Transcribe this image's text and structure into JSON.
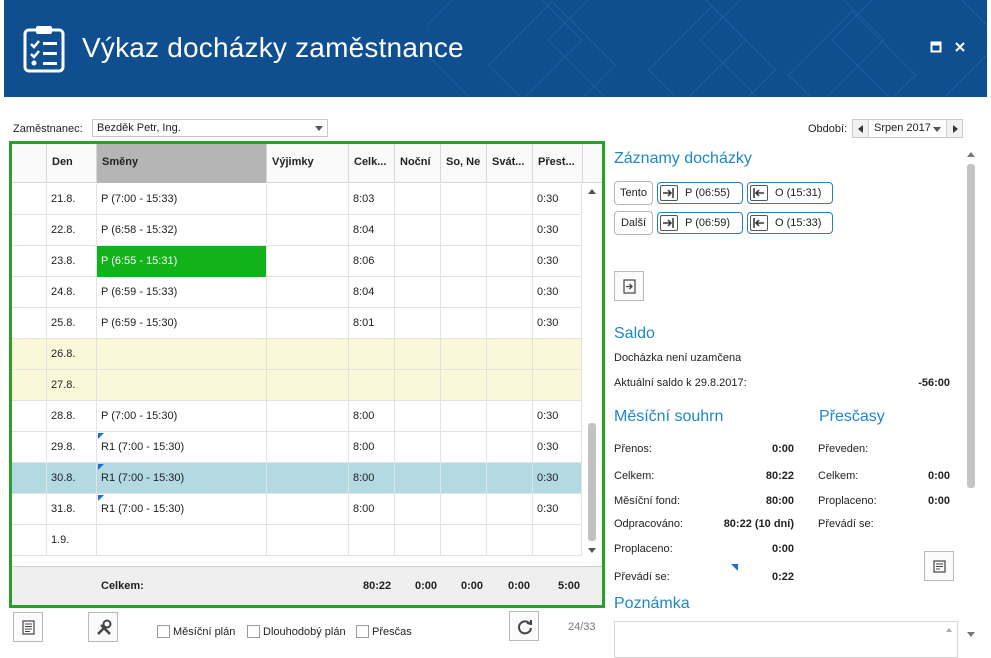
{
  "header": {
    "title": "Výkaz docházky zaměstnance",
    "maximize_icon": "maximize-icon",
    "close_icon": "close-icon"
  },
  "filters": {
    "employee_label": "Zaměstnanec:",
    "employee_value": "Bezděk Petr, Ing.",
    "period_label": "Období:",
    "period_value": "Srpen 2017"
  },
  "grid": {
    "columns": [
      "Den",
      "Směny",
      "Výjimky",
      "Celk...",
      "Noční",
      "So, Ne",
      "Svát...",
      "Přest..."
    ],
    "rows": [
      {
        "day": "21.8.",
        "shift": "P (7:00 - 15:33)",
        "exc": "",
        "total": "8:03",
        "night": "",
        "weekend": "",
        "holiday": "",
        "break": "0:30",
        "type": "normal",
        "flag": false
      },
      {
        "day": "22.8.",
        "shift": "P (6:58 - 15:32)",
        "exc": "",
        "total": "8:04",
        "night": "",
        "weekend": "",
        "holiday": "",
        "break": "0:30",
        "type": "normal",
        "flag": false
      },
      {
        "day": "23.8.",
        "shift": "P (6:55 - 15:31)",
        "exc": "",
        "total": "8:06",
        "night": "",
        "weekend": "",
        "holiday": "",
        "break": "0:30",
        "type": "highlight",
        "flag": false
      },
      {
        "day": "24.8.",
        "shift": "P (6:59 - 15:33)",
        "exc": "",
        "total": "8:04",
        "night": "",
        "weekend": "",
        "holiday": "",
        "break": "0:30",
        "type": "normal",
        "flag": false
      },
      {
        "day": "25.8.",
        "shift": "P (6:59 - 15:30)",
        "exc": "",
        "total": "8:01",
        "night": "",
        "weekend": "",
        "holiday": "",
        "break": "0:30",
        "type": "normal",
        "flag": false
      },
      {
        "day": "26.8.",
        "shift": "",
        "exc": "",
        "total": "",
        "night": "",
        "weekend": "",
        "holiday": "",
        "break": "",
        "type": "weekend",
        "flag": false
      },
      {
        "day": "27.8.",
        "shift": "",
        "exc": "",
        "total": "",
        "night": "",
        "weekend": "",
        "holiday": "",
        "break": "",
        "type": "weekend",
        "flag": false
      },
      {
        "day": "28.8.",
        "shift": "P (7:00 - 15:30)",
        "exc": "",
        "total": "8:00",
        "night": "",
        "weekend": "",
        "holiday": "",
        "break": "0:30",
        "type": "normal",
        "flag": false
      },
      {
        "day": "29.8.",
        "shift": "R1 (7:00 - 15:30)",
        "exc": "",
        "total": "8:00",
        "night": "",
        "weekend": "",
        "holiday": "",
        "break": "0:30",
        "type": "normal",
        "flag": true
      },
      {
        "day": "30.8.",
        "shift": "R1 (7:00 - 15:30)",
        "exc": "",
        "total": "8:00",
        "night": "",
        "weekend": "",
        "holiday": "",
        "break": "0:30",
        "type": "selected",
        "flag": true
      },
      {
        "day": "31.8.",
        "shift": "R1 (7:00 - 15:30)",
        "exc": "",
        "total": "8:00",
        "night": "",
        "weekend": "",
        "holiday": "",
        "break": "0:30",
        "type": "normal",
        "flag": true
      },
      {
        "day": "1.9.",
        "shift": "",
        "exc": "",
        "total": "",
        "night": "",
        "weekend": "",
        "holiday": "",
        "break": "",
        "type": "normal",
        "flag": false
      }
    ],
    "footer": {
      "label": "Celkem:",
      "total": "80:22",
      "night": "0:00",
      "weekend": "0:00",
      "holiday": "0:00",
      "break": "5:00"
    },
    "colors": {
      "highlight": "#12b21b",
      "selected": "#b3d9e3",
      "weekend": "#fbf8d9",
      "border": "#2aa02a"
    }
  },
  "toolbar": {
    "report_icon": "report-icon",
    "tools_icon": "tools-icon",
    "refresh_icon": "refresh-icon",
    "chk_monthly": "Měsíční plán",
    "chk_longterm": "Dlouhodobý plán",
    "chk_overtime": "Přesčas",
    "pager": "24/33"
  },
  "records": {
    "title": "Záznamy docházky",
    "this_label": "Tento",
    "next_label": "Další",
    "this_in": "P (06:55)",
    "this_out": "O (15:31)",
    "next_in": "P (06:59)",
    "next_out": "O (15:33)"
  },
  "saldo": {
    "title": "Saldo",
    "status": "Docházka není uzamčena",
    "current_label": "Aktuální saldo k 29.8.2017:",
    "current_value": "-56:00"
  },
  "monthly": {
    "title": "Měsíční souhrn",
    "items": [
      {
        "label": "Přenos:",
        "value": "0:00"
      },
      {
        "label": "Celkem:",
        "value": "80:22"
      },
      {
        "label": "Měsíční fond:",
        "value": "80:00"
      },
      {
        "label": "Odpracováno:",
        "value": "80:22 (10 dní)"
      },
      {
        "label": "Proplaceno:",
        "value": "0:00"
      },
      {
        "label": "Převádí se:",
        "value": "0:22"
      }
    ]
  },
  "overtime": {
    "title": "Přesčasy",
    "items": [
      {
        "label": "Převeden:",
        "value": ""
      },
      {
        "label": "Celkem:",
        "value": "0:00"
      },
      {
        "label": "Proplaceno:",
        "value": "0:00"
      },
      {
        "label": "Převádí se:",
        "value": ""
      }
    ]
  },
  "note": {
    "title": "Poznámka"
  }
}
